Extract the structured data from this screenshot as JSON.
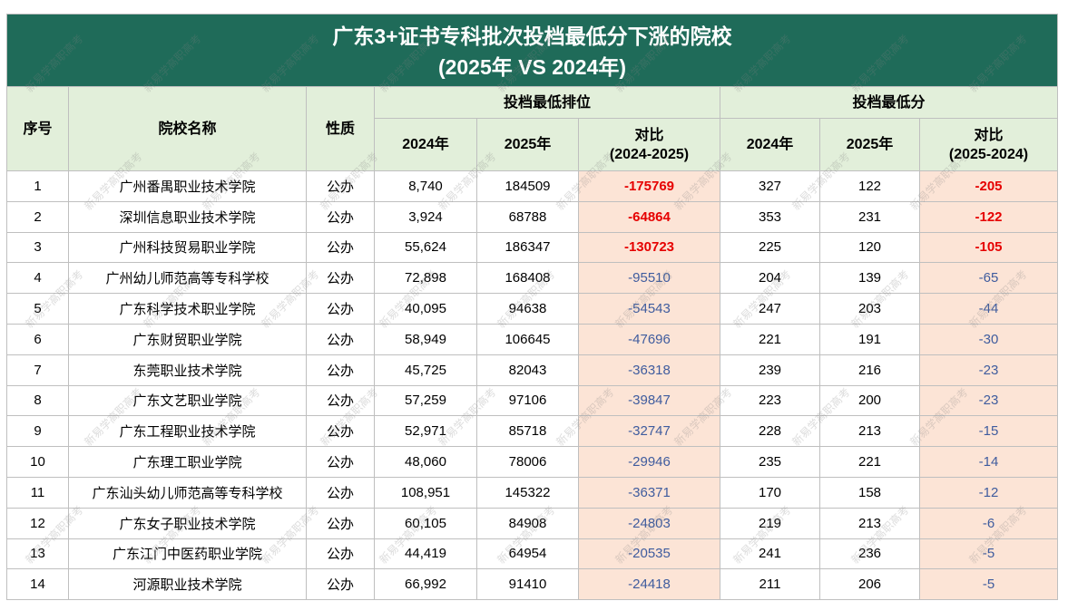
{
  "title": {
    "line1": "广东3+证书专科批次投档最低分下涨的院校",
    "line2": "(2025年 VS 2024年)"
  },
  "headers": {
    "index": "序号",
    "school": "院校名称",
    "type": "性质",
    "rank_group": "投档最低排位",
    "score_group": "投档最低分",
    "rank_2024": "2024年",
    "rank_2025": "2025年",
    "rank_diff": "对比",
    "rank_diff_range": "(2024-2025)",
    "score_2024": "2024年",
    "score_2025": "2025年",
    "score_diff": "对比",
    "score_diff_range": "(2025-2024)"
  },
  "rows": [
    {
      "no": "1",
      "school": "广州番禺职业技术学院",
      "type": "公办",
      "rank_2024": "8,740",
      "rank_2025": "184509",
      "rank_diff": "-175769",
      "score_2024": "327",
      "score_2025": "122",
      "score_diff": "-205",
      "emphasized": true
    },
    {
      "no": "2",
      "school": "深圳信息职业技术学院",
      "type": "公办",
      "rank_2024": "3,924",
      "rank_2025": "68788",
      "rank_diff": "-64864",
      "score_2024": "353",
      "score_2025": "231",
      "score_diff": "-122",
      "emphasized": true
    },
    {
      "no": "3",
      "school": "广州科技贸易职业学院",
      "type": "公办",
      "rank_2024": "55,624",
      "rank_2025": "186347",
      "rank_diff": "-130723",
      "score_2024": "225",
      "score_2025": "120",
      "score_diff": "-105",
      "emphasized": true
    },
    {
      "no": "4",
      "school": "广州幼儿师范高等专科学校",
      "type": "公办",
      "rank_2024": "72,898",
      "rank_2025": "168408",
      "rank_diff": "-95510",
      "score_2024": "204",
      "score_2025": "139",
      "score_diff": "-65",
      "emphasized": false
    },
    {
      "no": "5",
      "school": "广东科学技术职业学院",
      "type": "公办",
      "rank_2024": "40,095",
      "rank_2025": "94638",
      "rank_diff": "-54543",
      "score_2024": "247",
      "score_2025": "203",
      "score_diff": "-44",
      "emphasized": false
    },
    {
      "no": "6",
      "school": "广东财贸职业学院",
      "type": "公办",
      "rank_2024": "58,949",
      "rank_2025": "106645",
      "rank_diff": "-47696",
      "score_2024": "221",
      "score_2025": "191",
      "score_diff": "-30",
      "emphasized": false
    },
    {
      "no": "7",
      "school": "东莞职业技术学院",
      "type": "公办",
      "rank_2024": "45,725",
      "rank_2025": "82043",
      "rank_diff": "-36318",
      "score_2024": "239",
      "score_2025": "216",
      "score_diff": "-23",
      "emphasized": false
    },
    {
      "no": "8",
      "school": "广东文艺职业学院",
      "type": "公办",
      "rank_2024": "57,259",
      "rank_2025": "97106",
      "rank_diff": "-39847",
      "score_2024": "223",
      "score_2025": "200",
      "score_diff": "-23",
      "emphasized": false
    },
    {
      "no": "9",
      "school": "广东工程职业技术学院",
      "type": "公办",
      "rank_2024": "52,971",
      "rank_2025": "85718",
      "rank_diff": "-32747",
      "score_2024": "228",
      "score_2025": "213",
      "score_diff": "-15",
      "emphasized": false
    },
    {
      "no": "10",
      "school": "广东理工职业学院",
      "type": "公办",
      "rank_2024": "48,060",
      "rank_2025": "78006",
      "rank_diff": "-29946",
      "score_2024": "235",
      "score_2025": "221",
      "score_diff": "-14",
      "emphasized": false
    },
    {
      "no": "11",
      "school": "广东汕头幼儿师范高等专科学校",
      "type": "公办",
      "rank_2024": "108,951",
      "rank_2025": "145322",
      "rank_diff": "-36371",
      "score_2024": "170",
      "score_2025": "158",
      "score_diff": "-12",
      "emphasized": false
    },
    {
      "no": "12",
      "school": "广东女子职业技术学院",
      "type": "公办",
      "rank_2024": "60,105",
      "rank_2025": "84908",
      "rank_diff": "-24803",
      "score_2024": "219",
      "score_2025": "213",
      "score_diff": "-6",
      "emphasized": false
    },
    {
      "no": "13",
      "school": "广东江门中医药职业学院",
      "type": "公办",
      "rank_2024": "44,419",
      "rank_2025": "64954",
      "rank_diff": "-20535",
      "score_2024": "241",
      "score_2025": "236",
      "score_diff": "-5",
      "emphasized": false
    },
    {
      "no": "14",
      "school": "河源职业技术学院",
      "type": "公办",
      "rank_2024": "66,992",
      "rank_2025": "91410",
      "rank_diff": "-24418",
      "score_2024": "211",
      "score_2025": "206",
      "score_diff": "-5",
      "emphasized": false
    }
  ],
  "watermark": "新易学高职高考",
  "colors": {
    "title_bg": "#1f6b59",
    "title_text": "#ffffff",
    "header_bg": "#e2efda",
    "diff_bg": "#fce4d6",
    "diff_text": "#3f5c9e",
    "emphasis_text": "#e60000",
    "grid_line": "#bfbfbf"
  }
}
